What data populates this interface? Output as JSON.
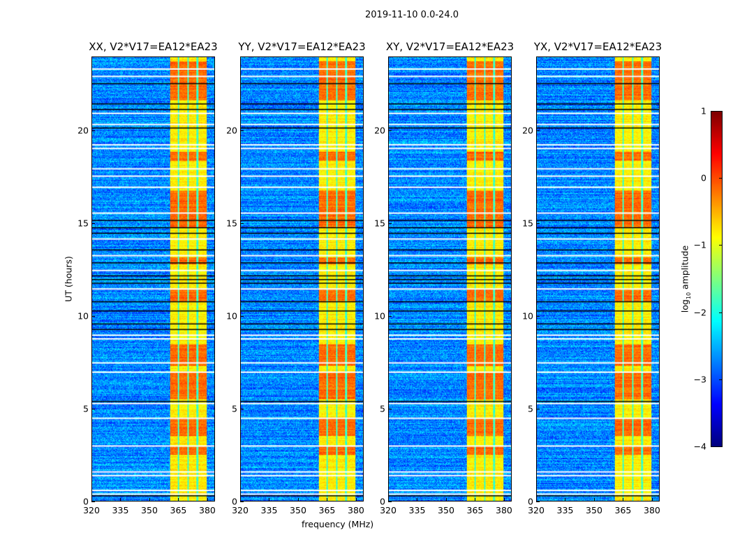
{
  "suptitle": "2019-11-10 0.0-24.0",
  "chart_data": {
    "type": "heatmap",
    "title": "2019-11-10 0.0-24.0",
    "xlabel": "frequency (MHz)",
    "ylabel": "UT (hours)",
    "xlim": [
      320,
      384
    ],
    "ylim": [
      0,
      24
    ],
    "xticks": [
      320,
      335,
      350,
      365,
      380
    ],
    "yticks": [
      0,
      5,
      10,
      15,
      20
    ],
    "panels": [
      {
        "title": "XX, V2*V17=EA12*EA23"
      },
      {
        "title": "YY, V2*V17=EA12*EA23"
      },
      {
        "title": "XY, V2*V17=EA12*EA23"
      },
      {
        "title": "YX, V2*V17=EA12*EA23"
      }
    ],
    "colorbar": {
      "label_prefix": "log",
      "label_sub": "10",
      "label_suffix": " amplitude",
      "range": [
        -4,
        1
      ],
      "ticks": [
        1,
        0,
        -1,
        -2,
        -3,
        -4
      ],
      "tick_labels": [
        "1",
        "0",
        "−1",
        "−2",
        "−3",
        "−4"
      ],
      "colormap": "jet"
    },
    "background_log_amplitude": -2.7,
    "band": {
      "freq_range_mhz": [
        360.5,
        379.7
      ],
      "channel_gaps_mhz": [
        365,
        370,
        375
      ],
      "log_amplitude": -0.8
    },
    "bright_intervals_hours": [
      [
        2.5,
        3.0
      ],
      [
        3.5,
        4.5
      ],
      [
        5.5,
        7.0
      ],
      [
        7.3,
        8.5
      ],
      [
        10.8,
        11.5
      ],
      [
        12.8,
        13.2
      ],
      [
        14.8,
        16.8
      ],
      [
        18.4,
        18.9
      ],
      [
        21.7,
        23.8
      ]
    ],
    "flagged_rows_hours": [
      0.4,
      0.6,
      1.4,
      1.6,
      3.0,
      4.5,
      5.3,
      7.0,
      7.5,
      8.8,
      9.0,
      11.5,
      12.5,
      13.3,
      14.2,
      15.6,
      17.0,
      17.6,
      18.0,
      19.1,
      19.3,
      20.4,
      21.0,
      23.0,
      23.4
    ],
    "dark_rows_hours": [
      0.3,
      5.4,
      9.3,
      9.6,
      10.3,
      10.8,
      11.8,
      12.0,
      12.2,
      12.9,
      13.6,
      14.5,
      14.8,
      15.2,
      20.2,
      21.2,
      21.5,
      22.6
    ]
  }
}
